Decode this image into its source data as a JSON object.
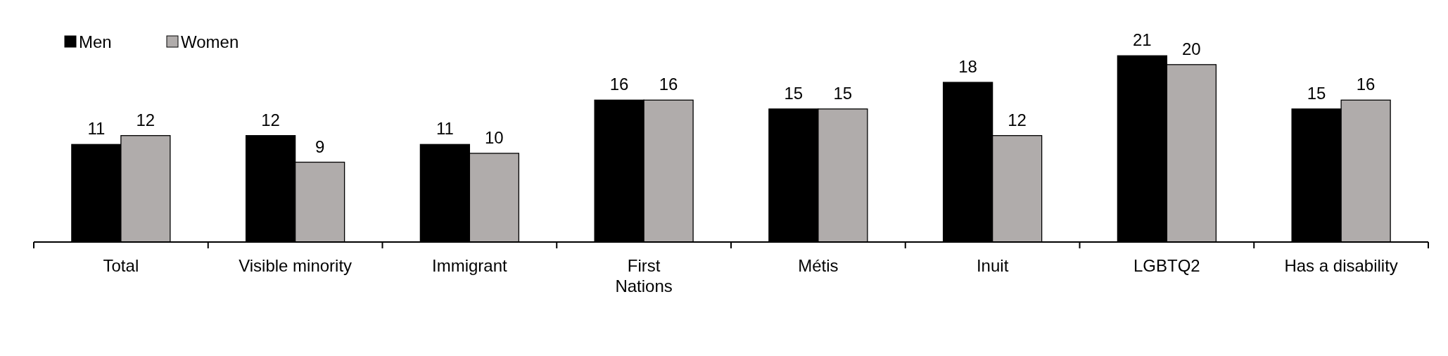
{
  "chart_data": {
    "type": "bar",
    "categories": [
      "Total",
      "Visible minority",
      "Immigrant",
      "First\nNations",
      "Métis",
      "Inuit",
      "LGBTQ2",
      "Has a disability"
    ],
    "series": [
      {
        "name": "Men",
        "color": "#000000",
        "values": [
          11,
          12,
          11,
          16,
          15,
          18,
          21,
          15
        ]
      },
      {
        "name": "Women",
        "color": "#b0acab",
        "values": [
          12,
          9,
          10,
          16,
          15,
          12,
          20,
          16
        ]
      }
    ],
    "ylim": [
      0,
      23
    ],
    "data_labels": true,
    "legend": "top left",
    "grid": false
  }
}
